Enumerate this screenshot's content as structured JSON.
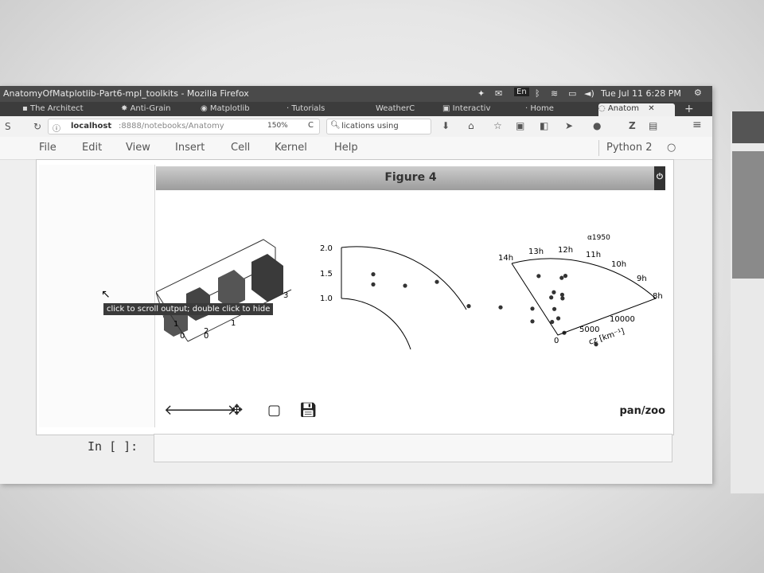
{
  "window": {
    "title": "AnatomyOfMatplotlib-Part6-mpl_toolkits - Mozilla Firefox",
    "tray": {
      "lang": "En",
      "datetime": "Tue Jul 11  6:28 PM"
    }
  },
  "tabs": [
    {
      "label": "The Architect"
    },
    {
      "label": "Anti-Grain"
    },
    {
      "label": "Matplotlib"
    },
    {
      "label": "Tutorials"
    },
    {
      "label": "WeatherC"
    },
    {
      "label": "Interactiv"
    },
    {
      "label": "Home"
    },
    {
      "label": "Anatom",
      "active": true
    }
  ],
  "toolbar": {
    "url_host": "localhost",
    "url_rest": ":8888/notebooks/Anatomy",
    "zoom": "150%",
    "search_value": "lications using"
  },
  "menu": {
    "items": [
      "File",
      "Edit",
      "View",
      "Insert",
      "Cell",
      "Kernel",
      "Help"
    ],
    "kernel": "Python 2"
  },
  "figure": {
    "title": "Figure 4",
    "mode": "pan/zoo",
    "tooltip": "click to scroll output; double click to hide"
  },
  "cell": {
    "prompt": "In [ ]:"
  },
  "chart_data": [
    {
      "type": "bar",
      "note": "3D bar chart (partial, rotated)",
      "tick_labels": [
        "0",
        "1",
        "2",
        "3",
        "0",
        "1"
      ]
    },
    {
      "type": "scatter",
      "projection": "curvilinear polar",
      "tick_labels": [
        "1.0",
        "1.5",
        "2.0"
      ],
      "points": [
        {
          "x": 1,
          "y": 1.6
        },
        {
          "x": 1,
          "y": 1.4
        },
        {
          "x": 2,
          "y": 1.5
        },
        {
          "x": 3,
          "y": 1.7
        },
        {
          "x": 4,
          "y": 1.35
        },
        {
          "x": 5,
          "y": 1.45
        },
        {
          "x": 6,
          "y": 1.3
        },
        {
          "x": 6,
          "y": 1.55
        },
        {
          "x": 7,
          "y": 1.2
        },
        {
          "x": 8,
          "y": 1.1
        }
      ]
    },
    {
      "type": "scatter",
      "projection": "polar sector",
      "axis_label": "cz [km⁻¹]",
      "ra_labels": [
        "14h",
        "13h",
        "12h",
        "11h",
        "10h",
        "9h",
        "8h"
      ],
      "epoch_label": "α1950",
      "radial_ticks": [
        "0",
        "5000",
        "10000"
      ],
      "points": [
        {
          "ra": 12.7,
          "cz": 5200
        },
        {
          "ra": 12.0,
          "cz": 3200
        },
        {
          "ra": 11.6,
          "cz": 3600
        },
        {
          "ra": 10.8,
          "cz": 4800
        },
        {
          "ra": 10.5,
          "cz": 5000
        },
        {
          "ra": 10.6,
          "cz": 3400
        },
        {
          "ra": 10.5,
          "cz": 3100
        },
        {
          "ra": 13.2,
          "cz": 1200
        },
        {
          "ra": 11.0,
          "cz": 1400
        },
        {
          "ra": 11.8,
          "cz": 2200
        }
      ]
    }
  ]
}
